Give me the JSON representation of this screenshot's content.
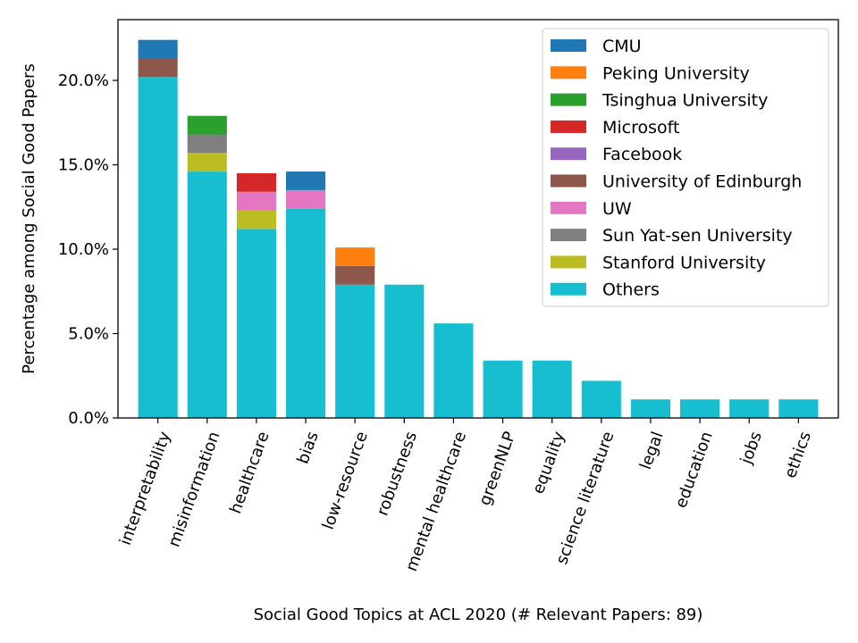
{
  "chart_data": {
    "type": "bar",
    "stacked": true,
    "title": "",
    "xlabel": "Social Good Topics at ACL 2020 (# Relevant Papers: 89)",
    "ylabel": "Percentage among Social Good Papers",
    "ylim": [
      0,
      23.6
    ],
    "yticks": [
      0,
      5,
      10,
      15,
      20
    ],
    "ytick_labels": [
      "0.0%",
      "5.0%",
      "10.0%",
      "15.0%",
      "20.0%"
    ],
    "grid": false,
    "legend_position": "top-right",
    "categories": [
      "interpretability",
      "misinformation",
      "healthcare",
      "bias",
      "low-resource",
      "robustness",
      "mental healthcare",
      "greenNLP",
      "equality",
      "science literature",
      "legal",
      "education",
      "jobs",
      "ethics"
    ],
    "series": [
      {
        "name": "Others",
        "color": "#17becf",
        "values": [
          20.2,
          14.6,
          11.2,
          12.4,
          7.9,
          7.9,
          5.6,
          3.4,
          3.4,
          2.2,
          1.1,
          1.1,
          1.1,
          1.1
        ]
      },
      {
        "name": "Stanford University",
        "color": "#bcbd22",
        "values": [
          0,
          1.1,
          1.1,
          0,
          0,
          0,
          0,
          0,
          0,
          0,
          0,
          0,
          0,
          0
        ]
      },
      {
        "name": "Sun Yat-sen University",
        "color": "#7f7f7f",
        "values": [
          0,
          1.1,
          0,
          0,
          0,
          0,
          0,
          0,
          0,
          0,
          0,
          0,
          0,
          0
        ]
      },
      {
        "name": "UW",
        "color": "#e377c2",
        "values": [
          0,
          0,
          1.1,
          1.1,
          0,
          0,
          0,
          0,
          0,
          0,
          0,
          0,
          0,
          0
        ]
      },
      {
        "name": "University of Edinburgh",
        "color": "#8c564b",
        "values": [
          1.1,
          0,
          0,
          0,
          1.1,
          0,
          0,
          0,
          0,
          0,
          0,
          0,
          0,
          0
        ]
      },
      {
        "name": "Facebook",
        "color": "#9467bd",
        "values": [
          0,
          0,
          0,
          0,
          0,
          0,
          0,
          0,
          0,
          0,
          0,
          0,
          0,
          0
        ]
      },
      {
        "name": "Microsoft",
        "color": "#d62728",
        "values": [
          0,
          0,
          1.1,
          0,
          0,
          0,
          0,
          0,
          0,
          0,
          0,
          0,
          0,
          0
        ]
      },
      {
        "name": "Tsinghua University",
        "color": "#2ca02c",
        "values": [
          0,
          1.1,
          0,
          0,
          0,
          0,
          0,
          0,
          0,
          0,
          0,
          0,
          0,
          0
        ]
      },
      {
        "name": "Peking University",
        "color": "#ff7f0e",
        "values": [
          0,
          0,
          0,
          0,
          1.1,
          0,
          0,
          0,
          0,
          0,
          0,
          0,
          0,
          0
        ]
      },
      {
        "name": "CMU",
        "color": "#1f77b4",
        "values": [
          1.1,
          0,
          0,
          1.1,
          0,
          0,
          0,
          0,
          0,
          0,
          0,
          0,
          0,
          0
        ]
      }
    ],
    "legend_order": [
      "CMU",
      "Peking University",
      "Tsinghua University",
      "Microsoft",
      "Facebook",
      "University of Edinburgh",
      "UW",
      "Sun Yat-sen University",
      "Stanford University",
      "Others"
    ]
  }
}
